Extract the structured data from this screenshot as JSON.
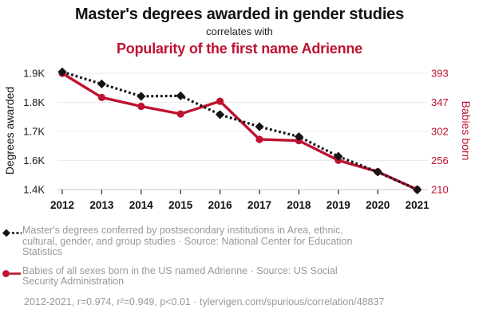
{
  "header": {
    "title": "Master's degrees awarded in gender studies",
    "connector": "correlates with",
    "subtitle": "Popularity of the first name Adrienne"
  },
  "colors": {
    "accent_red": "#be1230",
    "series_black": "#141414",
    "legend_gray": "#999999",
    "grid_gray": "#ebebeb"
  },
  "chart_data": {
    "type": "line",
    "title": "Master's degrees awarded in gender studies",
    "subtitle": "Popularity of the first name Adrienne",
    "x": [
      2012,
      2013,
      2014,
      2015,
      2016,
      2017,
      2018,
      2019,
      2020,
      2021
    ],
    "x_tick_labels": [
      "2012",
      "2013",
      "2014",
      "2015",
      "2016",
      "2017",
      "2018",
      "2019",
      "2020",
      "2021"
    ],
    "series": [
      {
        "name": "Master's degrees conferred by postsecondary institutions in Area, ethnic, cultural, gender, and group studies",
        "source": "National Center for Education Statistics",
        "axis": "left",
        "color": "#141414",
        "marker": "diamond",
        "line_style": "dashed",
        "values": [
          1936,
          1885,
          1833,
          1835,
          1756,
          1705,
          1663,
          1580,
          1514,
          1440
        ]
      },
      {
        "name": "Babies of all sexes born in the US named Adrienne",
        "source": "US Social Security Administration",
        "axis": "right",
        "color": "#be1230",
        "marker": "circle",
        "line_style": "solid",
        "values": [
          393,
          355,
          341,
          329,
          349,
          289,
          287,
          256,
          238,
          210
        ]
      }
    ],
    "left_axis": {
      "label": "Degrees awarded",
      "tick_labels": [
        "1.9K",
        "1.8K",
        "1.7K",
        "1.6K",
        "1.4K"
      ],
      "min": 1440,
      "max": 1930
    },
    "right_axis": {
      "label": "Babies born",
      "tick_labels": [
        "393",
        "347",
        "302",
        "256",
        "210"
      ],
      "min": 210,
      "max": 393
    },
    "grid": true,
    "legend_position": "bottom-left",
    "stats": {
      "years": "2012-2021",
      "r": "0.974",
      "r2": "0.949",
      "p": "p<0.01"
    }
  },
  "legend": {
    "item1": "Master's degrees conferred by postsecondary institutions in Area, ethnic, cultural, gender, and group studies · Source: National Center for Education Statistics",
    "item2": "Babies of all sexes born in the US named Adrienne · Source: US Social Security Administration",
    "stats": "2012-2021, r=0.974, r²=0.949, p<0.01 · tylervigen.com/spurious/correlation/48837"
  }
}
